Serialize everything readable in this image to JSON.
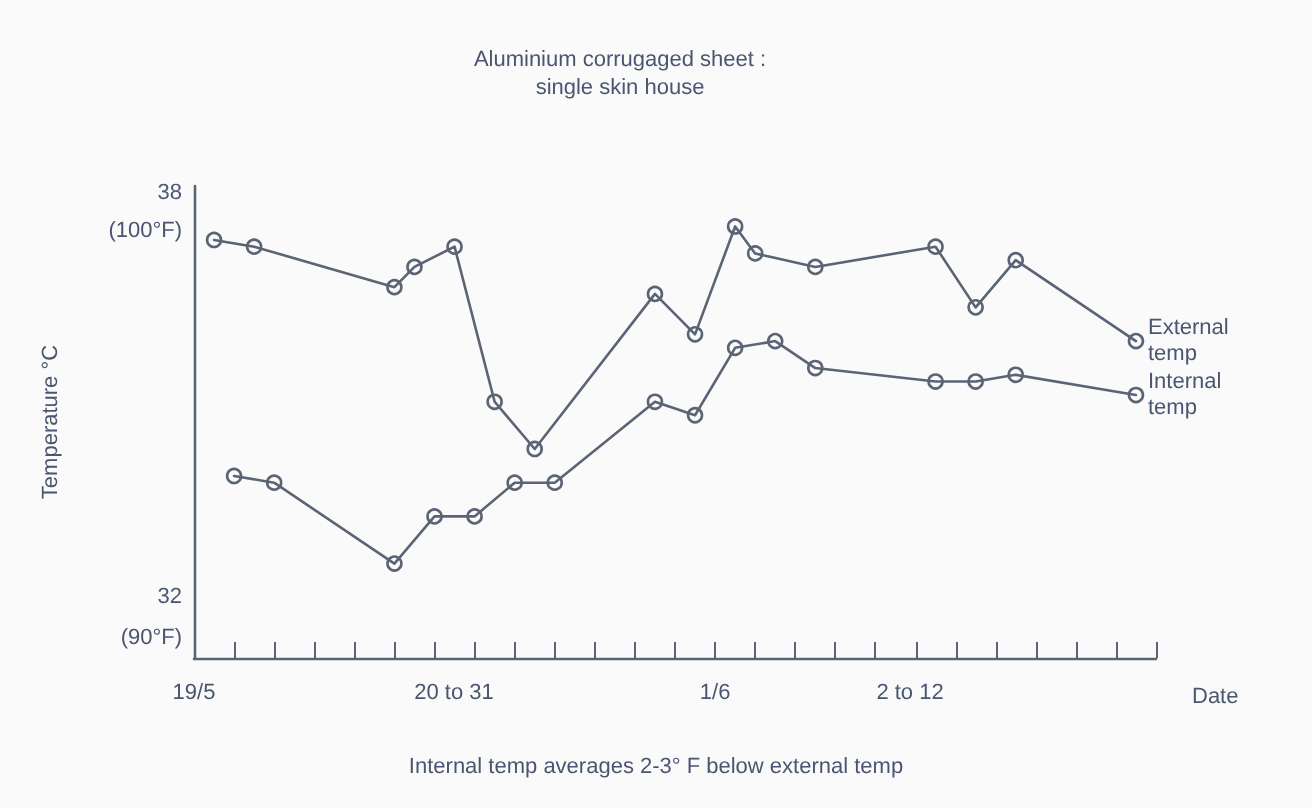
{
  "chart_data": {
    "type": "line",
    "title": "Aluminium corrugaged sheet :\nsingle skin house",
    "xlabel": "Date",
    "y2label": "Temperature °C",
    "annotations": [
      "20 to 31",
      "2 to 12",
      "Internal temp averages 2-3° F below external temp"
    ],
    "xlim": [
      "--05-19",
      "--06-12"
    ],
    "xticks": [
      {
        "value": "--05-19",
        "label": "19/5"
      },
      {
        "value": "--05-20",
        "label": null
      },
      {
        "value": "--05-21",
        "label": null
      },
      {
        "value": "--05-22",
        "label": null
      },
      {
        "value": "--05-23",
        "label": null
      },
      {
        "value": "--05-24",
        "label": null
      },
      {
        "value": "--05-25",
        "label": null
      },
      {
        "value": "--05-26",
        "label": null
      },
      {
        "value": "--05-27",
        "label": null
      },
      {
        "value": "--05-28",
        "label": null
      },
      {
        "value": "--05-29",
        "label": null
      },
      {
        "value": "--05-30",
        "label": null
      },
      {
        "value": "--05-31",
        "label": null
      },
      {
        "value": "--06-01",
        "label": "1/6"
      },
      {
        "value": "--06-02",
        "label": null
      },
      {
        "value": "--06-03",
        "label": null
      },
      {
        "value": "--06-04",
        "label": null
      },
      {
        "value": "--06-05",
        "label": null
      },
      {
        "value": "--06-06",
        "label": null
      },
      {
        "value": "--06-07",
        "label": null
      },
      {
        "value": "--06-08",
        "label": null
      },
      {
        "value": "--06-09",
        "label": null
      },
      {
        "value": "--06-10",
        "label": null
      },
      {
        "value": "--06-11",
        "label": null
      },
      {
        "value": "--06-12",
        "label": null
      }
    ],
    "ylim": [
      31.1,
      38.1
    ],
    "yticks": [
      32,
      38
    ],
    "y2lim": [
      89.5,
      101.1
    ],
    "y2ticks": [
      {
        "value": 90,
        "label": "(90°F)"
      },
      {
        "value": 100,
        "label": "(100°F)"
      }
    ],
    "marker": "circle",
    "line_style": "solid",
    "legend": "right",
    "series": [
      {
        "name": "External temp",
        "color": "#5b6475",
        "x": [
          "--05-19T12:00",
          "--05-20T12:00",
          "--05-24",
          "--05-24T12:00",
          "--05-25T12:00",
          "--05-26T12:00",
          "--05-27T12:00",
          "--05-30T12:00",
          "--05-31T12:00",
          "--06-01T12:00",
          "--06-02",
          "--06-03T12:00",
          "--06-06T12:00",
          "--06-07T12:00",
          "--06-08T12:00",
          "--06-11T12:00"
        ],
        "values": [
          37.3,
          37.2,
          36.6,
          36.9,
          37.2,
          34.9,
          34.2,
          36.5,
          35.9,
          37.5,
          37.1,
          36.9,
          37.2,
          36.3,
          37.0,
          35.8
        ]
      },
      {
        "name": "Internal temp",
        "color": "#5b6475",
        "x": [
          "--05-20",
          "--05-21",
          "--05-24",
          "--05-25",
          "--05-26",
          "--05-27",
          "--05-28",
          "--05-30T12:00",
          "--05-31T12:00",
          "--06-01T12:00",
          "--06-02T12:00",
          "--06-03T12:00",
          "--06-06T12:00",
          "--06-07T12:00",
          "--06-08T12:00",
          "--06-11T12:00"
        ],
        "values": [
          33.8,
          33.7,
          32.5,
          33.2,
          33.2,
          33.7,
          33.7,
          34.9,
          34.7,
          35.7,
          35.8,
          35.4,
          35.2,
          35.2,
          35.3,
          35.0
        ]
      }
    ]
  }
}
